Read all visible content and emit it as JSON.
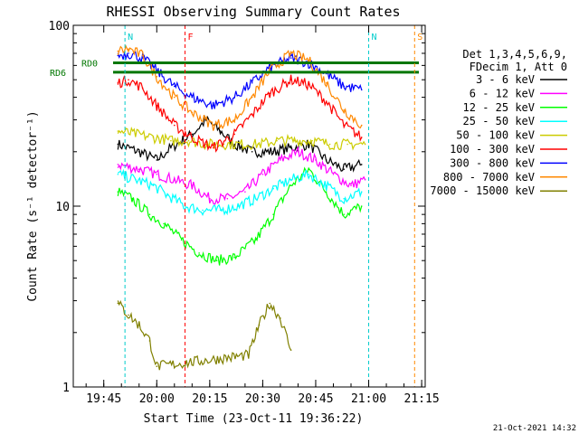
{
  "chart_data": {
    "type": "line",
    "title": "RHESSI Observing Summary Count Rates",
    "xlabel": "Start Time (23-Oct-11 19:36:22)",
    "ylabel": "Count Rate (s⁻¹ detector⁻¹)",
    "y_scale": "log",
    "ylim": [
      1,
      100
    ],
    "xlim": [
      "19:36:22",
      "21:16:00"
    ],
    "x_ticks": [
      "19:45",
      "20:00",
      "20:15",
      "20:30",
      "20:45",
      "21:00",
      "21:15"
    ],
    "y_ticks": [
      "1",
      "10",
      "100"
    ],
    "legend_header": [
      "Det 1,3,4,5,6,9,",
      "FDecim 1, Att 0"
    ],
    "legend_position": "right",
    "series": [
      {
        "name": "3 - 6 keV",
        "color": "#000000",
        "x": [
          "19:49",
          "19:55",
          "20:00",
          "20:04",
          "20:10",
          "20:14",
          "20:18",
          "20:22",
          "20:27",
          "20:33",
          "20:38",
          "20:43",
          "20:48",
          "20:53",
          "20:58"
        ],
        "values": [
          22,
          20,
          18,
          21,
          25,
          30,
          26,
          22,
          20,
          20,
          21,
          22,
          18,
          16,
          17
        ]
      },
      {
        "name": "6 - 12 keV",
        "color": "#ff00ff",
        "x": [
          "19:49",
          "19:55",
          "20:00",
          "20:05",
          "20:10",
          "20:15",
          "20:20",
          "20:25",
          "20:30",
          "20:35",
          "20:40",
          "20:45",
          "20:50",
          "20:55",
          "20:59"
        ],
        "values": [
          17,
          16,
          15,
          14,
          13,
          11,
          11,
          12,
          15,
          18,
          20,
          18,
          15,
          13,
          14
        ]
      },
      {
        "name": "12 - 25 keV",
        "color": "#00ff00",
        "x": [
          "19:49",
          "19:53",
          "19:58",
          "20:02",
          "20:07",
          "20:12",
          "20:17",
          "20:22",
          "20:28",
          "20:33",
          "20:38",
          "20:43",
          "20:48",
          "20:53",
          "20:58"
        ],
        "values": [
          12,
          11,
          9,
          8,
          6.5,
          5.5,
          5,
          5.2,
          6.5,
          9,
          13,
          16,
          12,
          9,
          10
        ]
      },
      {
        "name": "25 - 50 keV",
        "color": "#00ffff",
        "x": [
          "19:49",
          "19:54",
          "19:59",
          "20:03",
          "20:08",
          "20:13",
          "20:18",
          "20:23",
          "20:28",
          "20:33",
          "20:38",
          "20:43",
          "20:48",
          "20:53",
          "20:58"
        ],
        "values": [
          15,
          14,
          13,
          11.5,
          10,
          9.5,
          9.5,
          10,
          11,
          12.5,
          14,
          15,
          13,
          11,
          12
        ]
      },
      {
        "name": "50 - 100 keV",
        "color": "#cccc00",
        "x": [
          "19:49",
          "19:54",
          "19:59",
          "20:04",
          "20:09",
          "20:14",
          "20:19",
          "20:24",
          "20:29",
          "20:34",
          "20:39",
          "20:44",
          "20:49",
          "20:54",
          "20:59"
        ],
        "values": [
          26,
          25,
          24,
          23,
          23,
          22,
          22,
          22,
          22,
          23,
          23,
          23,
          22,
          22,
          22
        ]
      },
      {
        "name": "100 - 300 keV",
        "color": "#ff0000",
        "x": [
          "19:49",
          "19:52",
          "19:56",
          "20:00",
          "20:05",
          "20:10",
          "20:16",
          "20:22",
          "20:27",
          "20:32",
          "20:38",
          "20:43",
          "20:48",
          "20:53",
          "20:58"
        ],
        "values": [
          48,
          50,
          45,
          36,
          28,
          24,
          21,
          25,
          32,
          42,
          50,
          47,
          38,
          28,
          24
        ]
      },
      {
        "name": "300 - 800 keV",
        "color": "#0000ff",
        "x": [
          "19:49",
          "19:52",
          "19:56",
          "20:00",
          "20:05",
          "20:10",
          "20:16",
          "20:22",
          "20:27",
          "20:32",
          "20:38",
          "20:43",
          "20:48",
          "20:53",
          "20:58"
        ],
        "values": [
          68,
          70,
          66,
          56,
          46,
          40,
          36,
          40,
          48,
          58,
          66,
          62,
          54,
          46,
          44
        ]
      },
      {
        "name": "800 - 7000 keV",
        "color": "#ff8800",
        "x": [
          "19:49",
          "19:52",
          "19:56",
          "20:00",
          "20:05",
          "20:10",
          "20:16",
          "20:22",
          "20:27",
          "20:32",
          "20:38",
          "20:43",
          "20:48",
          "20:53",
          "20:58"
        ],
        "values": [
          72,
          74,
          68,
          52,
          40,
          33,
          28,
          30,
          40,
          56,
          70,
          64,
          48,
          34,
          28
        ]
      },
      {
        "name": "7000 - 15000 keV",
        "color": "#808000",
        "x": [
          "19:49",
          "19:52",
          "19:55",
          "19:58",
          "20:00",
          "20:26",
          "20:29",
          "20:32",
          "20:35",
          "20:38"
        ],
        "values": [
          2.9,
          2.5,
          2.2,
          1.8,
          1.3,
          1.5,
          2.2,
          2.9,
          2.4,
          1.6
        ]
      }
    ],
    "annotations": [
      {
        "text": "RD0",
        "y": 62,
        "color": "#007700"
      },
      {
        "text": "RD6",
        "y": 55,
        "color": "#007700"
      },
      {
        "text": "N",
        "x": "19:51",
        "color": "#00cccc"
      },
      {
        "text": "F",
        "x": "20:08",
        "color": "#ff0000"
      },
      {
        "text": "S",
        "x": "21:13",
        "color": "#ff8800"
      },
      {
        "text": "N",
        "x": "21:00",
        "color": "#00cccc"
      }
    ],
    "grid": false
  },
  "footer": {
    "timestamp": "21-Oct-2021 14:32"
  }
}
